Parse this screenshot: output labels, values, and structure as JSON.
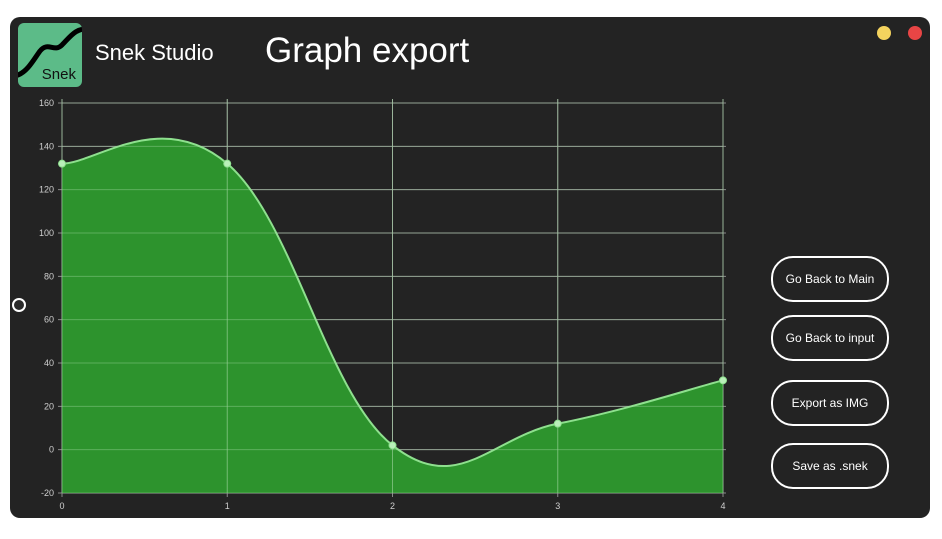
{
  "app": {
    "name": "Snek Studio",
    "logo_text": "Snek"
  },
  "page": {
    "title": "Graph export"
  },
  "window_controls": {
    "minimize_color": "#f4d35e",
    "close_color": "#e84545"
  },
  "buttons": {
    "back_main": "Go Back to Main",
    "back_input": "Go Back to input",
    "export_img": "Export as IMG",
    "save_snek": "Save as .snek"
  },
  "chart_data": {
    "type": "area",
    "x": [
      0,
      1,
      2,
      3,
      4
    ],
    "series": [
      {
        "values": [
          132,
          132,
          2,
          12,
          32
        ]
      }
    ],
    "xlim": [
      0,
      4
    ],
    "ylim": [
      -20,
      160
    ],
    "yticks": [
      -20,
      0,
      20,
      40,
      60,
      80,
      100,
      120,
      140,
      160
    ],
    "xticks": [
      0,
      1,
      2,
      3,
      4
    ],
    "grid": true,
    "fill_color": "#2e9a2e",
    "line_color": "#8ee08e",
    "point_color": "#b9f0b9"
  }
}
